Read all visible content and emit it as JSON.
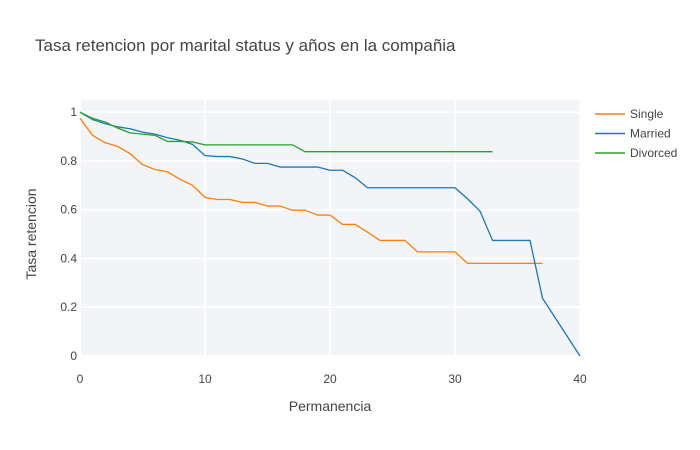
{
  "chart_data": {
    "type": "line",
    "title": "Tasa retencion por marital status y años en la compañia",
    "xlabel": "Permanencia",
    "ylabel": "Tasa retencion",
    "xlim": [
      0,
      40
    ],
    "ylim": [
      0,
      1.05
    ],
    "xticks": [
      0,
      10,
      20,
      30,
      40
    ],
    "yticks": [
      0,
      0.2,
      0.4,
      0.6,
      0.8,
      1
    ],
    "ytick_labels": [
      "0",
      "0.2",
      "0.4",
      "0.6",
      "0.8",
      "1"
    ],
    "grid": true,
    "legend_position": "top-right",
    "series": [
      {
        "name": "Single",
        "color": "#ff7f0e",
        "x": [
          0,
          1,
          2,
          3,
          4,
          5,
          6,
          7,
          8,
          9,
          10,
          11,
          12,
          13,
          14,
          15,
          16,
          17,
          18,
          19,
          20,
          21,
          22,
          23,
          24,
          25,
          26,
          27,
          28,
          29,
          30,
          31,
          32,
          33,
          34,
          35,
          36,
          37
        ],
        "y": [
          0.975,
          0.905,
          0.875,
          0.86,
          0.83,
          0.785,
          0.765,
          0.755,
          0.725,
          0.7,
          0.65,
          0.642,
          0.642,
          0.63,
          0.63,
          0.615,
          0.615,
          0.598,
          0.598,
          0.578,
          0.578,
          0.54,
          0.54,
          0.508,
          0.474,
          0.474,
          0.474,
          0.427,
          0.427,
          0.427,
          0.427,
          0.38,
          0.38,
          0.38,
          0.38,
          0.38,
          0.38,
          0.38
        ]
      },
      {
        "name": "Married",
        "color": "#1f77b4",
        "x": [
          0,
          1,
          2,
          3,
          4,
          5,
          6,
          7,
          8,
          9,
          10,
          11,
          12,
          13,
          14,
          15,
          16,
          17,
          18,
          19,
          20,
          21,
          22,
          23,
          24,
          25,
          26,
          27,
          28,
          29,
          30,
          31,
          32,
          33,
          34,
          35,
          36,
          37,
          40
        ],
        "y": [
          1.0,
          0.97,
          0.953,
          0.94,
          0.932,
          0.918,
          0.91,
          0.895,
          0.885,
          0.868,
          0.822,
          0.818,
          0.818,
          0.808,
          0.79,
          0.79,
          0.775,
          0.775,
          0.775,
          0.775,
          0.762,
          0.762,
          0.732,
          0.69,
          0.69,
          0.69,
          0.69,
          0.69,
          0.69,
          0.69,
          0.69,
          0.645,
          0.594,
          0.474,
          0.474,
          0.474,
          0.474,
          0.237,
          0.0
        ]
      },
      {
        "name": "Divorced",
        "color": "#2ca02c",
        "x": [
          0,
          1,
          2,
          3,
          4,
          5,
          6,
          7,
          8,
          9,
          10,
          11,
          12,
          13,
          14,
          15,
          16,
          17,
          18,
          19,
          20,
          21,
          22,
          23,
          24,
          25,
          26,
          27,
          28,
          29,
          30,
          31,
          32,
          33
        ],
        "y": [
          1.0,
          0.975,
          0.96,
          0.935,
          0.915,
          0.91,
          0.905,
          0.88,
          0.88,
          0.878,
          0.866,
          0.866,
          0.866,
          0.866,
          0.866,
          0.866,
          0.866,
          0.866,
          0.838,
          0.838,
          0.838,
          0.838,
          0.838,
          0.838,
          0.838,
          0.838,
          0.838,
          0.838,
          0.838,
          0.838,
          0.838,
          0.838,
          0.838,
          0.838
        ]
      }
    ]
  }
}
